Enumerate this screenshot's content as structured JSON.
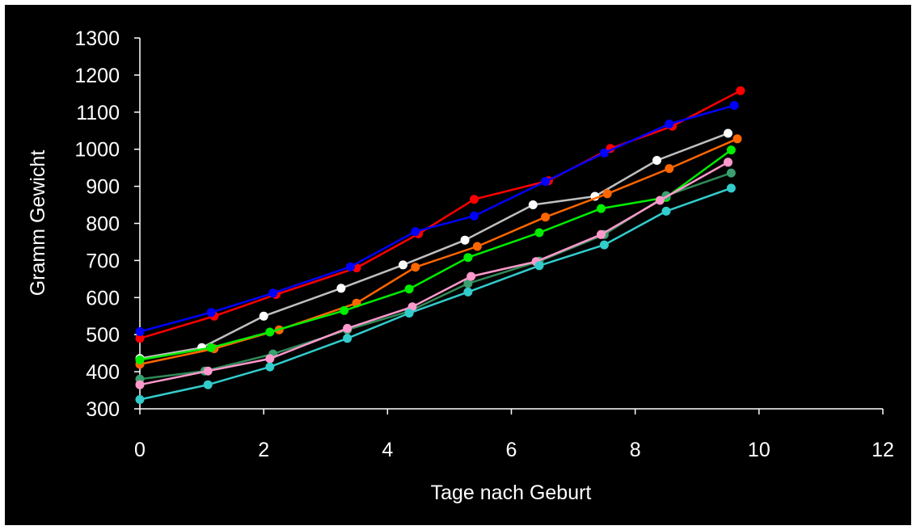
{
  "chart_data": {
    "type": "line",
    "title": "",
    "xlabel": "Tage nach Geburt",
    "ylabel": "Gramm Gewicht",
    "xlim": [
      0,
      12
    ],
    "ylim": [
      300,
      1300
    ],
    "x_ticks": [
      0,
      2,
      4,
      6,
      8,
      10,
      12
    ],
    "y_ticks": [
      300,
      400,
      500,
      600,
      700,
      800,
      900,
      1000,
      1100,
      1200,
      1300
    ],
    "grid": false,
    "legend": "none",
    "series": [
      {
        "color": "#ff0000",
        "x": [
          0,
          1.2,
          2.2,
          3.5,
          4.5,
          5.4,
          6.6,
          7.6,
          8.6,
          9.7
        ],
        "y": [
          490,
          550,
          608,
          680,
          772,
          865,
          915,
          1002,
          1062,
          1158
        ]
      },
      {
        "color": "#0000ff",
        "x": [
          0,
          1.15,
          2.15,
          3.4,
          4.45,
          5.4,
          6.55,
          7.5,
          8.55,
          9.6
        ],
        "y": [
          508,
          560,
          612,
          683,
          778,
          820,
          913,
          990,
          1068,
          1118
        ]
      },
      {
        "color": "#c0c0c0",
        "marker": "#ffffff",
        "x": [
          0,
          1.0,
          2.0,
          3.25,
          4.25,
          5.25,
          6.35,
          7.35,
          8.35,
          9.5
        ],
        "y": [
          436,
          465,
          550,
          625,
          688,
          755,
          850,
          873,
          970,
          1043
        ]
      },
      {
        "color": "#ff6600",
        "x": [
          0,
          1.2,
          2.25,
          3.5,
          4.45,
          5.45,
          6.55,
          7.55,
          8.55,
          9.65
        ],
        "y": [
          420,
          462,
          513,
          585,
          682,
          738,
          817,
          880,
          948,
          1028
        ]
      },
      {
        "color": "#00ee00",
        "x": [
          0,
          1.15,
          2.1,
          3.3,
          4.35,
          5.3,
          6.45,
          7.45,
          8.5,
          9.55
        ],
        "y": [
          432,
          465,
          507,
          565,
          623,
          708,
          775,
          840,
          870,
          998
        ]
      },
      {
        "color": "#2e8b57",
        "marker": "#3aa070",
        "x": [
          0,
          1.05,
          2.15,
          3.35,
          4.35,
          5.3,
          6.45,
          7.5,
          8.5,
          9.55
        ],
        "y": [
          380,
          402,
          448,
          513,
          563,
          638,
          698,
          770,
          875,
          936
        ]
      },
      {
        "color": "#ff99cc",
        "x": [
          0,
          1.1,
          2.1,
          3.35,
          4.4,
          5.35,
          6.4,
          7.45,
          8.4,
          9.5
        ],
        "y": [
          365,
          402,
          435,
          517,
          575,
          657,
          697,
          770,
          862,
          965
        ]
      },
      {
        "color": "#33cccc",
        "x": [
          0,
          1.1,
          2.1,
          3.35,
          4.35,
          5.3,
          6.45,
          7.5,
          8.5,
          9.55
        ],
        "y": [
          325,
          365,
          413,
          490,
          558,
          615,
          686,
          742,
          833,
          895
        ]
      }
    ]
  }
}
